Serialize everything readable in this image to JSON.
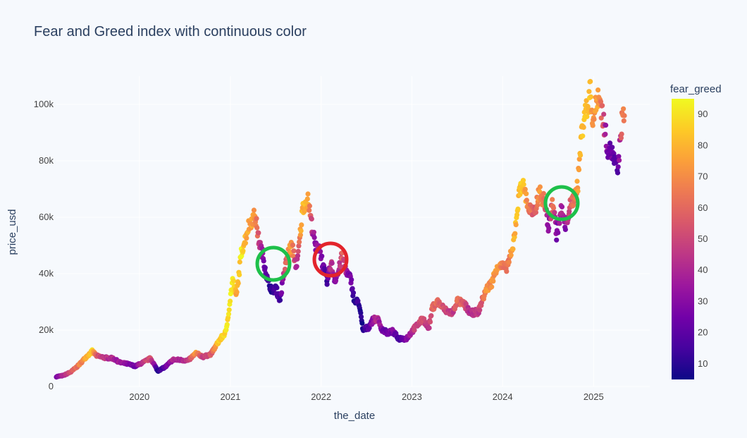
{
  "chart_data": {
    "type": "scatter",
    "title": "Fear and Greed index with continuous color",
    "xlabel": "the_date",
    "ylabel": "price_usd",
    "x_ticks": [
      "2020",
      "2021",
      "2022",
      "2023",
      "2024",
      "2025"
    ],
    "y_ticks": [
      "0",
      "20k",
      "40k",
      "60k",
      "80k",
      "100k"
    ],
    "xlim": [
      "2019-02-01",
      "2025-08-15"
    ],
    "ylim": [
      0,
      110000
    ],
    "grid": true,
    "colorbar": {
      "title": "fear_greed",
      "range": [
        5,
        95
      ],
      "ticks": [
        "10",
        "20",
        "30",
        "40",
        "50",
        "60",
        "70",
        "80",
        "90"
      ],
      "colorscale": [
        "#0d0887",
        "#46039f",
        "#7201a8",
        "#9c179e",
        "#bd3786",
        "#d8576b",
        "#ed7953",
        "#fb9f3a",
        "#fdca26",
        "#f0f921"
      ]
    },
    "series": [
      {
        "points": [
          [
            "2019-02-01",
            3500,
            25
          ],
          [
            "2019-03-01",
            3900,
            40
          ],
          [
            "2019-04-01",
            5200,
            55
          ],
          [
            "2019-05-01",
            7500,
            65
          ],
          [
            "2019-06-01",
            10500,
            75
          ],
          [
            "2019-06-25",
            12500,
            85
          ],
          [
            "2019-07-15",
            10800,
            55
          ],
          [
            "2019-08-15",
            10200,
            45
          ],
          [
            "2019-09-15",
            10000,
            40
          ],
          [
            "2019-10-15",
            8500,
            35
          ],
          [
            "2019-11-15",
            8000,
            30
          ],
          [
            "2019-12-15",
            7200,
            25
          ],
          [
            "2020-01-15",
            8500,
            45
          ],
          [
            "2020-02-15",
            10000,
            55
          ],
          [
            "2020-03-15",
            5500,
            10
          ],
          [
            "2020-04-15",
            7000,
            20
          ],
          [
            "2020-05-15",
            9500,
            40
          ],
          [
            "2020-06-15",
            9400,
            40
          ],
          [
            "2020-07-15",
            9200,
            45
          ],
          [
            "2020-08-15",
            11800,
            75
          ],
          [
            "2020-09-15",
            10500,
            45
          ],
          [
            "2020-10-15",
            11500,
            55
          ],
          [
            "2020-11-15",
            16000,
            85
          ],
          [
            "2020-12-15",
            19500,
            90
          ],
          [
            "2021-01-10",
            38000,
            93
          ],
          [
            "2021-01-25",
            32000,
            75
          ],
          [
            "2021-02-15",
            48000,
            93
          ],
          [
            "2021-03-01",
            52000,
            80
          ],
          [
            "2021-03-15",
            57000,
            75
          ],
          [
            "2021-04-10",
            61000,
            75
          ],
          [
            "2021-04-25",
            52000,
            50
          ],
          [
            "2021-05-15",
            45000,
            25
          ],
          [
            "2021-06-01",
            37000,
            15
          ],
          [
            "2021-06-20",
            34000,
            10
          ],
          [
            "2021-07-01",
            35000,
            18
          ],
          [
            "2021-07-20",
            31000,
            15
          ],
          [
            "2021-08-05",
            40000,
            45
          ],
          [
            "2021-08-20",
            47000,
            70
          ],
          [
            "2021-09-05",
            50000,
            75
          ],
          [
            "2021-09-25",
            42000,
            35
          ],
          [
            "2021-10-10",
            55000,
            75
          ],
          [
            "2021-10-20",
            64000,
            80
          ],
          [
            "2021-11-10",
            66000,
            78
          ],
          [
            "2021-11-25",
            57000,
            45
          ],
          [
            "2021-12-10",
            49000,
            25
          ],
          [
            "2021-12-25",
            50000,
            40
          ],
          [
            "2022-01-10",
            42000,
            22
          ],
          [
            "2022-01-25",
            37000,
            15
          ],
          [
            "2022-02-10",
            44000,
            50
          ],
          [
            "2022-02-25",
            38000,
            25
          ],
          [
            "2022-03-10",
            40000,
            35
          ],
          [
            "2022-03-28",
            47000,
            60
          ],
          [
            "2022-04-15",
            40000,
            30
          ],
          [
            "2022-05-01",
            38000,
            25
          ],
          [
            "2022-05-15",
            30000,
            10
          ],
          [
            "2022-06-01",
            30000,
            12
          ],
          [
            "2022-06-18",
            20000,
            8
          ],
          [
            "2022-07-10",
            21000,
            18
          ],
          [
            "2022-07-28",
            23500,
            30
          ],
          [
            "2022-08-15",
            24000,
            45
          ],
          [
            "2022-09-05",
            20000,
            25
          ],
          [
            "2022-09-25",
            19000,
            22
          ],
          [
            "2022-10-15",
            19500,
            28
          ],
          [
            "2022-11-10",
            17000,
            15
          ],
          [
            "2022-12-10",
            17000,
            28
          ],
          [
            "2023-01-15",
            21000,
            48
          ],
          [
            "2023-02-15",
            24000,
            55
          ],
          [
            "2023-03-10",
            20500,
            40
          ],
          [
            "2023-03-25",
            28000,
            60
          ],
          [
            "2023-04-15",
            30000,
            62
          ],
          [
            "2023-05-15",
            27000,
            50
          ],
          [
            "2023-06-15",
            26000,
            45
          ],
          [
            "2023-07-01",
            30500,
            62
          ],
          [
            "2023-08-01",
            29000,
            55
          ],
          [
            "2023-08-25",
            26000,
            40
          ],
          [
            "2023-09-25",
            26500,
            45
          ],
          [
            "2023-10-25",
            34000,
            70
          ],
          [
            "2023-11-20",
            37000,
            72
          ],
          [
            "2023-12-10",
            43000,
            75
          ],
          [
            "2024-01-15",
            42000,
            60
          ],
          [
            "2024-02-10",
            48000,
            75
          ],
          [
            "2024-02-28",
            62000,
            82
          ],
          [
            "2024-03-14",
            72000,
            85
          ],
          [
            "2024-03-28",
            70000,
            80
          ],
          [
            "2024-04-15",
            63000,
            65
          ],
          [
            "2024-05-10",
            61000,
            55
          ],
          [
            "2024-05-25",
            69000,
            75
          ],
          [
            "2024-06-15",
            66000,
            65
          ],
          [
            "2024-07-05",
            56000,
            28
          ],
          [
            "2024-07-20",
            66000,
            70
          ],
          [
            "2024-08-05",
            54000,
            25
          ],
          [
            "2024-08-25",
            63000,
            40
          ],
          [
            "2024-09-10",
            56000,
            30
          ],
          [
            "2024-09-25",
            63000,
            50
          ],
          [
            "2024-10-15",
            67000,
            65
          ],
          [
            "2024-10-30",
            72000,
            75
          ],
          [
            "2024-11-12",
            88000,
            82
          ],
          [
            "2024-11-25",
            97000,
            85
          ],
          [
            "2024-12-10",
            99000,
            80
          ],
          [
            "2024-12-17",
            106000,
            85
          ],
          [
            "2024-12-30",
            94000,
            70
          ],
          [
            "2025-01-20",
            104000,
            75
          ],
          [
            "2025-02-05",
            97000,
            60
          ],
          [
            "2025-02-28",
            84000,
            20
          ],
          [
            "2025-03-15",
            83000,
            25
          ],
          [
            "2025-04-08",
            76000,
            15
          ],
          [
            "2025-04-25",
            94000,
            62
          ],
          [
            "2025-05-05",
            96000,
            65
          ]
        ]
      }
    ]
  }
}
